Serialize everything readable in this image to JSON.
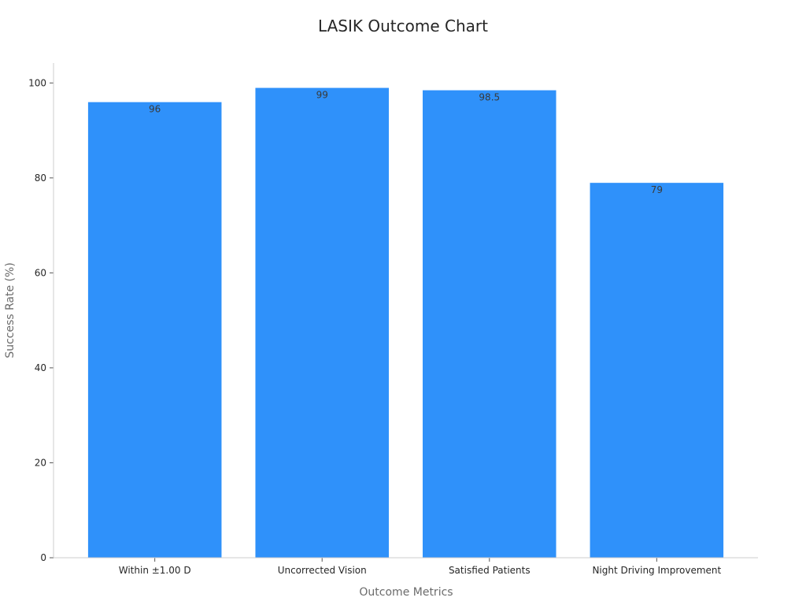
{
  "chart_data": {
    "type": "bar",
    "title": "LASIK Outcome Chart",
    "xlabel": "Outcome Metrics",
    "ylabel": "Success Rate (%)",
    "categories": [
      "Within ±1.00 D",
      "Uncorrected Vision",
      "Satisfied Patients",
      "Night Driving Improvement"
    ],
    "values": [
      96,
      99,
      98.5,
      79
    ],
    "data_labels": [
      "96",
      "99",
      "98.5",
      "79"
    ],
    "ylim": [
      0,
      104.2
    ],
    "yticks": [
      0,
      20,
      40,
      60,
      80,
      100
    ],
    "grid": false,
    "legend": "none",
    "bar_color": "#2f91fa"
  }
}
